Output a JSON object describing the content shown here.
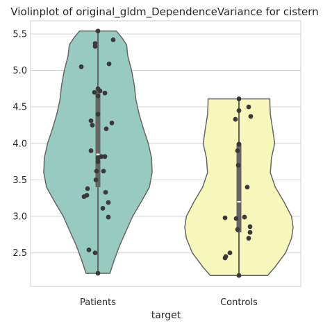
{
  "chart_data": {
    "type": "violin",
    "title": "Violinplot of original_gldm_DependenceVariance for cistern",
    "xlabel": "target",
    "ylabel": "",
    "categories": [
      "Patients",
      "Controls"
    ],
    "ylim": [
      2.04,
      5.68
    ],
    "yticks": [
      2.5,
      3.0,
      3.5,
      4.0,
      4.5,
      5.0,
      5.5
    ],
    "ytick_labels": [
      "2.5",
      "3.0",
      "3.5",
      "4.0",
      "4.5",
      "5.0",
      "5.5"
    ],
    "grid": "horizontal",
    "colors": {
      "Patients": "#97cbc0",
      "Controls": "#f8f7bb",
      "points": "#3a3a3a",
      "outline": "#656565",
      "grid": "#d4d4d4",
      "frame": "#cfcfcf"
    },
    "violins": [
      {
        "category": "Patients",
        "min": 2.22,
        "max": 5.54,
        "q1": 3.4,
        "median": 3.85,
        "q3": 4.72,
        "density": [
          [
            2.22,
            0.22
          ],
          [
            2.4,
            0.3
          ],
          [
            2.6,
            0.4
          ],
          [
            2.8,
            0.52
          ],
          [
            3.0,
            0.64
          ],
          [
            3.2,
            0.8
          ],
          [
            3.4,
            0.95
          ],
          [
            3.6,
            1.0
          ],
          [
            3.8,
            0.99
          ],
          [
            4.0,
            0.93
          ],
          [
            4.2,
            0.84
          ],
          [
            4.4,
            0.76
          ],
          [
            4.6,
            0.7
          ],
          [
            4.8,
            0.67
          ],
          [
            5.0,
            0.62
          ],
          [
            5.2,
            0.55
          ],
          [
            5.35,
            0.53
          ],
          [
            5.45,
            0.44
          ],
          [
            5.54,
            0.34
          ]
        ],
        "points": [
          [
            0.0,
            5.54
          ],
          [
            -0.04,
            5.37
          ],
          [
            0.22,
            5.42
          ],
          [
            -0.04,
            5.33
          ],
          [
            0.16,
            5.09
          ],
          [
            -0.24,
            5.05
          ],
          [
            -0.05,
            4.7
          ],
          [
            0.0,
            4.75
          ],
          [
            0.03,
            4.72
          ],
          [
            0.1,
            4.69
          ],
          [
            0.0,
            4.65
          ],
          [
            -0.08,
            4.25
          ],
          [
            0.2,
            4.28
          ],
          [
            -0.1,
            4.31
          ],
          [
            0.12,
            4.2
          ],
          [
            0.0,
            4.4
          ],
          [
            -0.1,
            3.9
          ],
          [
            0.05,
            3.82
          ],
          [
            0.1,
            3.82
          ],
          [
            0.0,
            3.8
          ],
          [
            0.0,
            3.75
          ],
          [
            -0.02,
            3.62
          ],
          [
            0.08,
            3.62
          ],
          [
            -0.03,
            3.5
          ],
          [
            -0.15,
            3.38
          ],
          [
            0.11,
            3.33
          ],
          [
            -0.2,
            3.27
          ],
          [
            -0.16,
            3.29
          ],
          [
            0.15,
            3.19
          ],
          [
            0.07,
            3.11
          ],
          [
            0.15,
            2.99
          ],
          [
            -0.13,
            2.54
          ],
          [
            -0.04,
            2.5
          ],
          [
            0.0,
            2.22
          ]
        ]
      },
      {
        "category": "Controls",
        "min": 2.19,
        "max": 4.61,
        "q1": 2.78,
        "median": 3.2,
        "q3": 4.0,
        "density": [
          [
            2.19,
            0.53
          ],
          [
            2.3,
            0.66
          ],
          [
            2.5,
            0.86
          ],
          [
            2.7,
            0.97
          ],
          [
            2.85,
            1.0
          ],
          [
            3.0,
            0.97
          ],
          [
            3.2,
            0.83
          ],
          [
            3.4,
            0.67
          ],
          [
            3.6,
            0.58
          ],
          [
            3.8,
            0.6
          ],
          [
            4.0,
            0.66
          ],
          [
            4.2,
            0.62
          ],
          [
            4.4,
            0.58
          ],
          [
            4.55,
            0.57
          ],
          [
            4.61,
            0.57
          ]
        ],
        "points": [
          [
            0.0,
            4.61
          ],
          [
            0.14,
            4.5
          ],
          [
            0.0,
            4.45
          ],
          [
            0.17,
            4.37
          ],
          [
            -0.05,
            4.33
          ],
          [
            0.0,
            3.99
          ],
          [
            -0.02,
            3.9
          ],
          [
            -0.01,
            3.7
          ],
          [
            0.12,
            3.4
          ],
          [
            -0.2,
            2.98
          ],
          [
            -0.04,
            2.97
          ],
          [
            0.08,
            2.99
          ],
          [
            0.16,
            2.86
          ],
          [
            -0.02,
            2.82
          ],
          [
            0.16,
            2.78
          ],
          [
            0.14,
            2.7
          ],
          [
            -0.13,
            2.5
          ],
          [
            -0.19,
            2.45
          ],
          [
            -0.2,
            2.43
          ],
          [
            0.0,
            2.19
          ]
        ]
      }
    ]
  }
}
